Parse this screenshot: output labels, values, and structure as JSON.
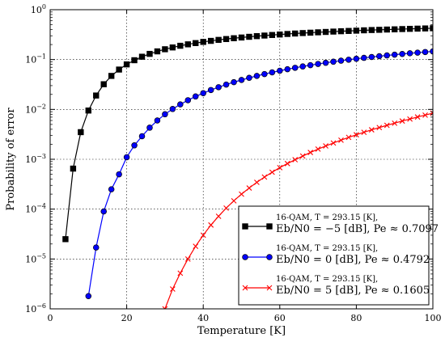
{
  "chart_data": {
    "type": "line",
    "xlabel": "Temperature [K]",
    "ylabel": "Probability of error",
    "xlim": [
      0,
      100
    ],
    "ylim": [
      1e-06,
      1
    ],
    "yscale": "log",
    "grid": true,
    "legend_position": "lower-right",
    "x_ticks": [
      "0",
      "20",
      "40",
      "60",
      "80",
      "100"
    ],
    "y_ticks": [
      {
        "base": "10",
        "exp": "0"
      },
      {
        "base": "10",
        "exp": "−1"
      },
      {
        "base": "10",
        "exp": "−2"
      },
      {
        "base": "10",
        "exp": "−3"
      },
      {
        "base": "10",
        "exp": "−4"
      },
      {
        "base": "10",
        "exp": "−5"
      },
      {
        "base": "10",
        "exp": "−6"
      }
    ],
    "series": [
      {
        "line1": "16-QAM, T = 293.15 [K],",
        "line2": "Eb/N0 = −5 [dB], Pe ≈ 0.7097",
        "color": "#000000",
        "marker": "square",
        "x": [
          4,
          6,
          8,
          10,
          12,
          14,
          16,
          18,
          20,
          22,
          24,
          26,
          28,
          30,
          32,
          34,
          36,
          38,
          40,
          42,
          44,
          46,
          48,
          50,
          52,
          54,
          56,
          58,
          60,
          62,
          64,
          66,
          68,
          70,
          72,
          74,
          76,
          78,
          80,
          82,
          84,
          86,
          88,
          90,
          92,
          94,
          96,
          98,
          100
        ],
        "y": [
          2.5e-05,
          0.00065,
          0.0035,
          0.0095,
          0.019,
          0.032,
          0.047,
          0.063,
          0.08,
          0.097,
          0.114,
          0.13,
          0.146,
          0.161,
          0.175,
          0.189,
          0.202,
          0.214,
          0.226,
          0.237,
          0.248,
          0.258,
          0.268,
          0.277,
          0.286,
          0.295,
          0.303,
          0.311,
          0.318,
          0.326,
          0.333,
          0.34,
          0.346,
          0.352,
          0.358,
          0.364,
          0.37,
          0.375,
          0.38,
          0.386,
          0.391,
          0.395,
          0.4,
          0.404,
          0.409,
          0.413,
          0.417,
          0.421,
          0.425
        ]
      },
      {
        "line1": "16-QAM, T = 293.15 [K],",
        "line2": "Eb/N0 = 0 [dB], Pe ≈ 0.4792",
        "color": "#0000ff",
        "marker": "circle",
        "x": [
          10,
          12,
          14,
          16,
          18,
          20,
          22,
          24,
          26,
          28,
          30,
          32,
          34,
          36,
          38,
          40,
          42,
          44,
          46,
          48,
          50,
          52,
          54,
          56,
          58,
          60,
          62,
          64,
          66,
          68,
          70,
          72,
          74,
          76,
          78,
          80,
          82,
          84,
          86,
          88,
          90,
          92,
          94,
          96,
          98,
          100
        ],
        "y": [
          1.8e-06,
          1.7e-05,
          9e-05,
          0.00025,
          0.0005,
          0.0011,
          0.0019,
          0.0029,
          0.0043,
          0.006,
          0.008,
          0.0102,
          0.0126,
          0.0153,
          0.0182,
          0.0212,
          0.0245,
          0.0279,
          0.0315,
          0.0352,
          0.039,
          0.043,
          0.047,
          0.0512,
          0.0554,
          0.0597,
          0.064,
          0.0684,
          0.0728,
          0.0772,
          0.0817,
          0.0861,
          0.0906,
          0.095,
          0.0994,
          0.1038,
          0.1082,
          0.1125,
          0.1168,
          0.1211,
          0.1253,
          0.1295,
          0.1336,
          0.1377,
          0.1417,
          0.1457
        ]
      },
      {
        "line1": "16-QAM, T = 293.15 [K],",
        "line2": "Eb/N0 = 5 [dB], Pe ≈ 0.1605",
        "color": "#ff0000",
        "marker": "x",
        "x": [
          30,
          32,
          34,
          36,
          38,
          40,
          42,
          44,
          46,
          48,
          50,
          52,
          54,
          56,
          58,
          60,
          62,
          64,
          66,
          68,
          70,
          72,
          74,
          76,
          78,
          80,
          82,
          84,
          86,
          88,
          90,
          92,
          94,
          96,
          98,
          100
        ],
        "y": [
          1e-06,
          2.5e-06,
          5.2e-06,
          1e-05,
          1.8e-05,
          3e-05,
          4.8e-05,
          7.2e-05,
          0.000105,
          0.000147,
          0.0002,
          0.000265,
          0.000345,
          0.00044,
          0.00055,
          0.00068,
          0.00082,
          0.00098,
          0.00116,
          0.00137,
          0.0016,
          0.00185,
          0.00212,
          0.00242,
          0.00275,
          0.0031,
          0.00348,
          0.0039,
          0.00433,
          0.0048,
          0.0053,
          0.00585,
          0.00642,
          0.00705,
          0.0077,
          0.0084
        ]
      }
    ]
  }
}
